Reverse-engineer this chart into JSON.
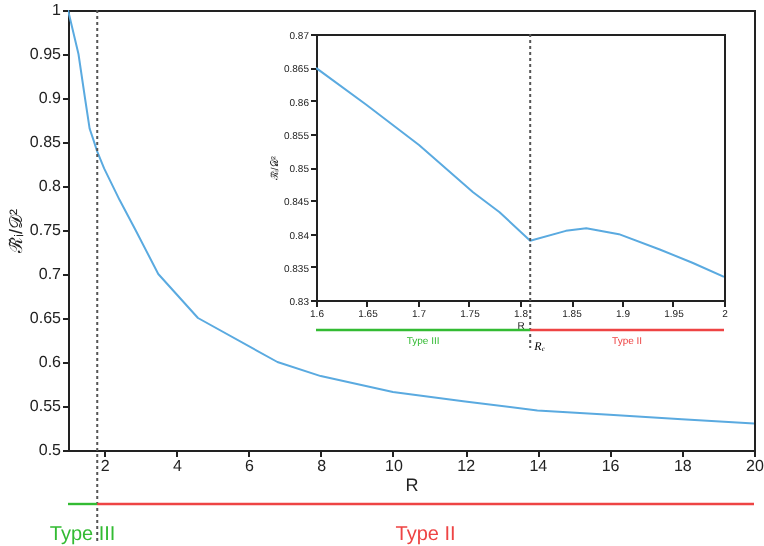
{
  "chart_data": [
    {
      "type": "line",
      "xlabel": "R",
      "ylabel": "ℛ̃ᵢ/𝒟²",
      "xlim": [
        1,
        20
      ],
      "ylim": [
        0.5,
        1
      ],
      "xticks": [
        2,
        4,
        6,
        8,
        10,
        12,
        14,
        16,
        18,
        20
      ],
      "yticks": [
        0.5,
        0.55,
        0.6,
        0.65,
        0.7,
        0.75,
        0.8,
        0.85,
        0.9,
        0.95,
        1
      ],
      "x": [
        1,
        1.29,
        1.47,
        1.6,
        1.7,
        1.81,
        2,
        2.43,
        2.87,
        3.5,
        4.6,
        6.8,
        8,
        10,
        12,
        14,
        16,
        18,
        20
      ],
      "series": [
        {
          "color": "#5aaae0",
          "values": [
            1,
            0.95,
            0.9,
            0.865,
            0.853,
            0.839,
            0.82,
            0.784,
            0.75,
            0.7,
            0.65,
            0.6,
            0.584,
            0.566,
            0.555,
            0.545,
            0.54,
            0.535,
            0.53
          ]
        }
      ],
      "ref_lines": [
        {
          "axis": "x",
          "value": 1.81,
          "line_style": "dotted",
          "color": "#555555"
        }
      ],
      "annotations": [
        "Type III",
        "Type II"
      ]
    },
    {
      "type": "line",
      "xlabel": "R",
      "ylabel": "ℛ̃ᵢ/𝒟²",
      "xlim": [
        1.6,
        2
      ],
      "ylim": [
        0.83,
        0.87
      ],
      "xticks": [
        1.6,
        1.65,
        1.7,
        1.75,
        1.8,
        1.85,
        1.9,
        1.95,
        2
      ],
      "yticks": [
        0.83,
        0.835,
        0.84,
        0.845,
        0.85,
        0.855,
        0.86,
        0.865,
        0.87
      ],
      "x": [
        1.6,
        1.649,
        1.701,
        1.754,
        1.78,
        1.81,
        1.845,
        1.865,
        1.897,
        1.937,
        1.969,
        2
      ],
      "series": [
        {
          "color": "#5aaae0",
          "values": [
            0.8649,
            0.8594,
            0.8533,
            0.8462,
            0.8432,
            0.8389,
            0.8404,
            0.8408,
            0.8399,
            0.8376,
            0.8356,
            0.8335
          ]
        }
      ],
      "ref_lines": [
        {
          "axis": "x",
          "value": 1.81,
          "label": "R$_{c}$",
          "line_style": "dotted",
          "color": "#555555"
        }
      ],
      "annotations": [
        "Type III",
        "Type II"
      ]
    }
  ]
}
